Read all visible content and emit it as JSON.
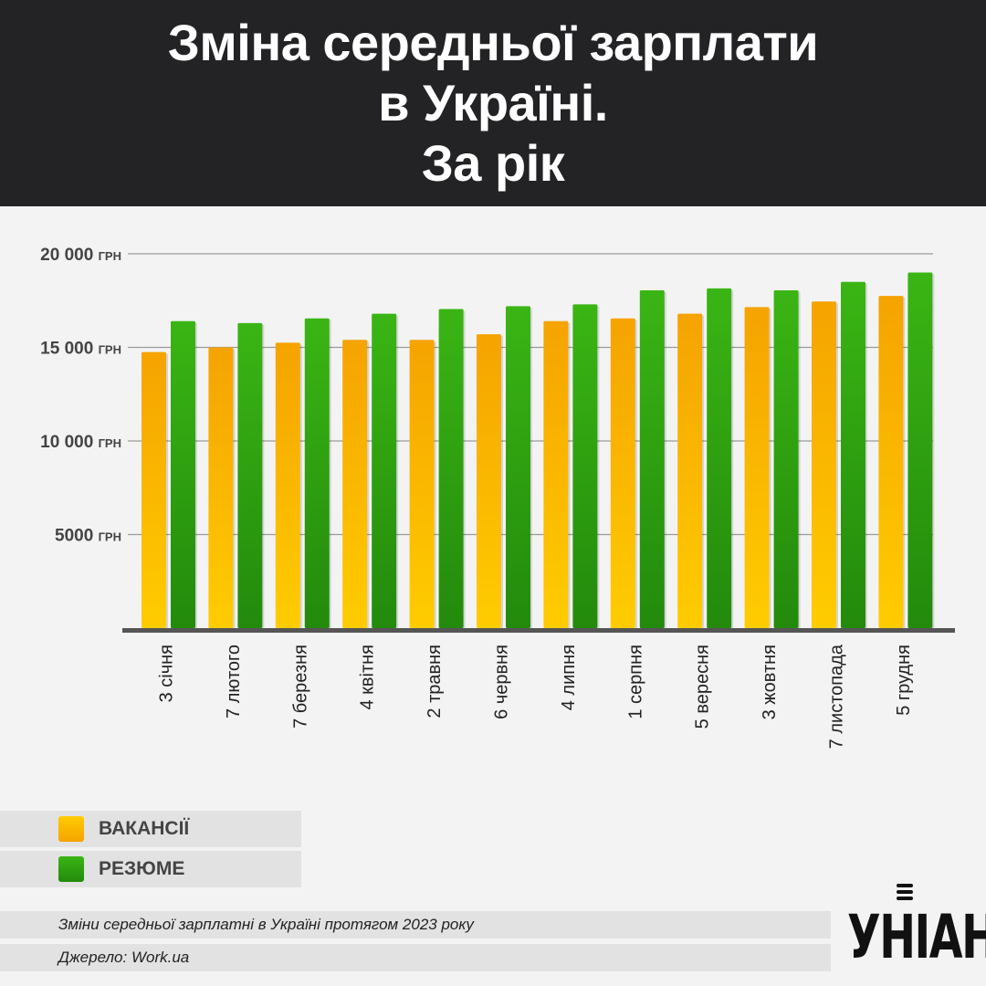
{
  "header": {
    "title_line1": "Зміна середньої зарплати",
    "title_line2": "в Україні.",
    "title_line3": "За рік"
  },
  "chart_data": {
    "type": "bar",
    "title": "Зміна середньої зарплати в Україні. За рік",
    "categories": [
      "3 січня",
      "7 лютого",
      "7 березня",
      "4 квітня",
      "2 травня",
      "6 червня",
      "4 липня",
      "1 серпня",
      "5 вересня",
      "3 жовтня",
      "7 листопада",
      "5 грудня"
    ],
    "series": [
      {
        "name": "ВАКАНСІЇ",
        "color": "#f5a300",
        "values": [
          14750,
          15000,
          15250,
          15400,
          15400,
          15700,
          16400,
          16550,
          16800,
          17150,
          17450,
          17750
        ]
      },
      {
        "name": "РЕЗЮМЕ",
        "color": "#3aaa14",
        "values": [
          16400,
          16300,
          16550,
          16800,
          17050,
          17200,
          17300,
          18050,
          18150,
          18050,
          18500,
          19000
        ]
      }
    ],
    "ylim": [
      0,
      20000
    ],
    "yticks": [
      {
        "value": 5000,
        "label": "5000",
        "unit": "ГРН"
      },
      {
        "value": 10000,
        "label": "10 000",
        "unit": "ГРН"
      },
      {
        "value": 15000,
        "label": "15 000",
        "unit": "ГРН"
      },
      {
        "value": 20000,
        "label": "20 000",
        "unit": "ГРН"
      }
    ],
    "xlabel": "",
    "ylabel": "",
    "grid": true,
    "legend_position": "bottom-left"
  },
  "legend": {
    "vacancies": "ВАКАНСІЇ",
    "resumes": "РЕЗЮМЕ"
  },
  "footer": {
    "caption": "Зміни середньої зарплатні в Україні протягом 2023 року",
    "source": "Джерело: Work.ua"
  },
  "logo": {
    "text": "УНІАН"
  }
}
